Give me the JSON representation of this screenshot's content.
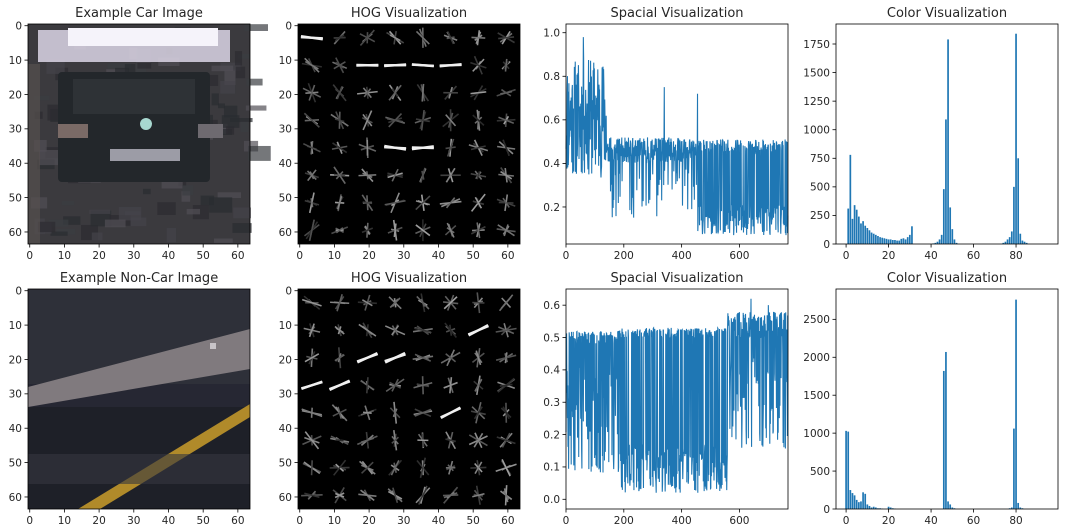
{
  "figure": {
    "background": "#ffffff",
    "series_color": "#1f77b4"
  },
  "chart_data": [
    {
      "type": "image",
      "title": "Example Car Image",
      "xticks": [
        0,
        10,
        20,
        30,
        40,
        50,
        60
      ],
      "yticks": [
        0,
        10,
        20,
        30,
        40,
        50,
        60
      ],
      "xlim": [
        -0.5,
        63.5
      ],
      "ylim": [
        63.5,
        -0.5
      ],
      "content": "car-photo"
    },
    {
      "type": "image",
      "title": "HOG Visualization",
      "xticks": [
        0,
        10,
        20,
        30,
        40,
        50,
        60
      ],
      "yticks": [
        0,
        10,
        20,
        30,
        40,
        50,
        60
      ],
      "xlim": [
        -0.5,
        63.5
      ],
      "ylim": [
        63.5,
        -0.5
      ],
      "content": "hog-car"
    },
    {
      "type": "line",
      "title": "Spacial Visualization",
      "xticks": [
        0,
        200,
        400,
        600
      ],
      "yticks": [
        0.2,
        0.4,
        0.6,
        0.8,
        1.0
      ],
      "xlim": [
        0,
        768
      ],
      "ylim": [
        0.03,
        1.04
      ],
      "profile": "car"
    },
    {
      "type": "bar",
      "title": "Color Visualization",
      "xticks": [
        0,
        20,
        40,
        60,
        80
      ],
      "yticks": [
        0,
        250,
        500,
        750,
        1000,
        1250,
        1500,
        1750
      ],
      "xlim": [
        -4.75,
        99.75
      ],
      "ylim": [
        0,
        1925
      ],
      "values": [
        0,
        310,
        780,
        220,
        340,
        300,
        240,
        180,
        200,
        160,
        140,
        120,
        100,
        90,
        80,
        70,
        60,
        55,
        50,
        45,
        40,
        40,
        35,
        35,
        30,
        30,
        45,
        50,
        40,
        60,
        80,
        155,
        0,
        0,
        0,
        0,
        0,
        0,
        0,
        0,
        0,
        5,
        10,
        20,
        40,
        80,
        480,
        1090,
        1790,
        320,
        130,
        40,
        10,
        0,
        0,
        0,
        0,
        0,
        0,
        0,
        0,
        0,
        0,
        0,
        0,
        0,
        0,
        0,
        0,
        0,
        0,
        0,
        0,
        0,
        10,
        20,
        40,
        60,
        110,
        500,
        1840,
        750,
        90,
        30,
        20,
        10,
        0,
        0,
        0,
        0,
        0,
        0,
        0,
        0,
        0,
        0
      ]
    },
    {
      "type": "image",
      "title": "Example Non-Car Image",
      "xticks": [
        0,
        10,
        20,
        30,
        40,
        50,
        60
      ],
      "yticks": [
        0,
        10,
        20,
        30,
        40,
        50,
        60
      ],
      "xlim": [
        -0.5,
        63.5
      ],
      "ylim": [
        63.5,
        -0.5
      ],
      "content": "road-photo"
    },
    {
      "type": "image",
      "title": "HOG Visualization",
      "xticks": [
        0,
        10,
        20,
        30,
        40,
        50,
        60
      ],
      "yticks": [
        0,
        10,
        20,
        30,
        40,
        50,
        60
      ],
      "xlim": [
        -0.5,
        63.5
      ],
      "ylim": [
        63.5,
        -0.5
      ],
      "content": "hog-noncar"
    },
    {
      "type": "line",
      "title": "Spacial Visualization",
      "xticks": [
        0,
        200,
        400,
        600
      ],
      "yticks": [
        0.0,
        0.1,
        0.2,
        0.3,
        0.4,
        0.5,
        0.6
      ],
      "xlim": [
        0,
        768
      ],
      "ylim": [
        -0.03,
        0.65
      ],
      "profile": "noncar"
    },
    {
      "type": "bar",
      "title": "Color Visualization",
      "xticks": [
        0,
        20,
        40,
        60,
        80
      ],
      "yticks": [
        0,
        500,
        1000,
        1500,
        2000,
        2500
      ],
      "xlim": [
        -4.75,
        99.75
      ],
      "ylim": [
        0,
        2900
      ],
      "values": [
        1030,
        1020,
        250,
        210,
        180,
        120,
        90,
        100,
        220,
        200,
        60,
        40,
        20,
        30,
        20,
        10,
        10,
        5,
        0,
        0,
        30,
        20,
        10,
        5,
        0,
        0,
        0,
        0,
        0,
        0,
        0,
        0,
        0,
        0,
        0,
        0,
        0,
        0,
        0,
        0,
        0,
        0,
        0,
        0,
        0,
        0,
        1820,
        2070,
        100,
        60,
        20,
        10,
        0,
        0,
        0,
        0,
        0,
        0,
        0,
        0,
        0,
        0,
        0,
        0,
        0,
        0,
        0,
        0,
        0,
        0,
        0,
        0,
        0,
        0,
        0,
        0,
        0,
        10,
        20,
        1060,
        2760,
        80,
        20,
        10,
        0,
        0,
        0,
        0,
        0,
        0,
        0,
        0,
        0,
        0,
        0,
        0
      ]
    }
  ]
}
